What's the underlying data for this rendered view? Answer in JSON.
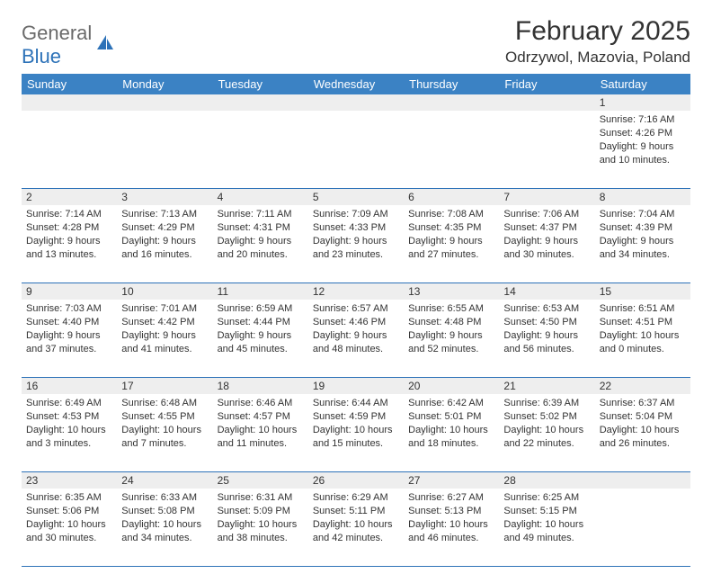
{
  "logo": {
    "part1": "General",
    "part2": "Blue"
  },
  "title": "February 2025",
  "location": "Odrzywol, Mazovia, Poland",
  "weekday_bar_color": "#3b82c4",
  "divider_color": "#2d72b8",
  "daynum_bg": "#eeeeee",
  "weekdays": [
    "Sunday",
    "Monday",
    "Tuesday",
    "Wednesday",
    "Thursday",
    "Friday",
    "Saturday"
  ],
  "weeks": [
    [
      null,
      null,
      null,
      null,
      null,
      null,
      {
        "n": "1",
        "sr": "Sunrise: 7:16 AM",
        "ss": "Sunset: 4:26 PM",
        "d1": "Daylight: 9 hours",
        "d2": "and 10 minutes."
      }
    ],
    [
      {
        "n": "2",
        "sr": "Sunrise: 7:14 AM",
        "ss": "Sunset: 4:28 PM",
        "d1": "Daylight: 9 hours",
        "d2": "and 13 minutes."
      },
      {
        "n": "3",
        "sr": "Sunrise: 7:13 AM",
        "ss": "Sunset: 4:29 PM",
        "d1": "Daylight: 9 hours",
        "d2": "and 16 minutes."
      },
      {
        "n": "4",
        "sr": "Sunrise: 7:11 AM",
        "ss": "Sunset: 4:31 PM",
        "d1": "Daylight: 9 hours",
        "d2": "and 20 minutes."
      },
      {
        "n": "5",
        "sr": "Sunrise: 7:09 AM",
        "ss": "Sunset: 4:33 PM",
        "d1": "Daylight: 9 hours",
        "d2": "and 23 minutes."
      },
      {
        "n": "6",
        "sr": "Sunrise: 7:08 AM",
        "ss": "Sunset: 4:35 PM",
        "d1": "Daylight: 9 hours",
        "d2": "and 27 minutes."
      },
      {
        "n": "7",
        "sr": "Sunrise: 7:06 AM",
        "ss": "Sunset: 4:37 PM",
        "d1": "Daylight: 9 hours",
        "d2": "and 30 minutes."
      },
      {
        "n": "8",
        "sr": "Sunrise: 7:04 AM",
        "ss": "Sunset: 4:39 PM",
        "d1": "Daylight: 9 hours",
        "d2": "and 34 minutes."
      }
    ],
    [
      {
        "n": "9",
        "sr": "Sunrise: 7:03 AM",
        "ss": "Sunset: 4:40 PM",
        "d1": "Daylight: 9 hours",
        "d2": "and 37 minutes."
      },
      {
        "n": "10",
        "sr": "Sunrise: 7:01 AM",
        "ss": "Sunset: 4:42 PM",
        "d1": "Daylight: 9 hours",
        "d2": "and 41 minutes."
      },
      {
        "n": "11",
        "sr": "Sunrise: 6:59 AM",
        "ss": "Sunset: 4:44 PM",
        "d1": "Daylight: 9 hours",
        "d2": "and 45 minutes."
      },
      {
        "n": "12",
        "sr": "Sunrise: 6:57 AM",
        "ss": "Sunset: 4:46 PM",
        "d1": "Daylight: 9 hours",
        "d2": "and 48 minutes."
      },
      {
        "n": "13",
        "sr": "Sunrise: 6:55 AM",
        "ss": "Sunset: 4:48 PM",
        "d1": "Daylight: 9 hours",
        "d2": "and 52 minutes."
      },
      {
        "n": "14",
        "sr": "Sunrise: 6:53 AM",
        "ss": "Sunset: 4:50 PM",
        "d1": "Daylight: 9 hours",
        "d2": "and 56 minutes."
      },
      {
        "n": "15",
        "sr": "Sunrise: 6:51 AM",
        "ss": "Sunset: 4:51 PM",
        "d1": "Daylight: 10 hours",
        "d2": "and 0 minutes."
      }
    ],
    [
      {
        "n": "16",
        "sr": "Sunrise: 6:49 AM",
        "ss": "Sunset: 4:53 PM",
        "d1": "Daylight: 10 hours",
        "d2": "and 3 minutes."
      },
      {
        "n": "17",
        "sr": "Sunrise: 6:48 AM",
        "ss": "Sunset: 4:55 PM",
        "d1": "Daylight: 10 hours",
        "d2": "and 7 minutes."
      },
      {
        "n": "18",
        "sr": "Sunrise: 6:46 AM",
        "ss": "Sunset: 4:57 PM",
        "d1": "Daylight: 10 hours",
        "d2": "and 11 minutes."
      },
      {
        "n": "19",
        "sr": "Sunrise: 6:44 AM",
        "ss": "Sunset: 4:59 PM",
        "d1": "Daylight: 10 hours",
        "d2": "and 15 minutes."
      },
      {
        "n": "20",
        "sr": "Sunrise: 6:42 AM",
        "ss": "Sunset: 5:01 PM",
        "d1": "Daylight: 10 hours",
        "d2": "and 18 minutes."
      },
      {
        "n": "21",
        "sr": "Sunrise: 6:39 AM",
        "ss": "Sunset: 5:02 PM",
        "d1": "Daylight: 10 hours",
        "d2": "and 22 minutes."
      },
      {
        "n": "22",
        "sr": "Sunrise: 6:37 AM",
        "ss": "Sunset: 5:04 PM",
        "d1": "Daylight: 10 hours",
        "d2": "and 26 minutes."
      }
    ],
    [
      {
        "n": "23",
        "sr": "Sunrise: 6:35 AM",
        "ss": "Sunset: 5:06 PM",
        "d1": "Daylight: 10 hours",
        "d2": "and 30 minutes."
      },
      {
        "n": "24",
        "sr": "Sunrise: 6:33 AM",
        "ss": "Sunset: 5:08 PM",
        "d1": "Daylight: 10 hours",
        "d2": "and 34 minutes."
      },
      {
        "n": "25",
        "sr": "Sunrise: 6:31 AM",
        "ss": "Sunset: 5:09 PM",
        "d1": "Daylight: 10 hours",
        "d2": "and 38 minutes."
      },
      {
        "n": "26",
        "sr": "Sunrise: 6:29 AM",
        "ss": "Sunset: 5:11 PM",
        "d1": "Daylight: 10 hours",
        "d2": "and 42 minutes."
      },
      {
        "n": "27",
        "sr": "Sunrise: 6:27 AM",
        "ss": "Sunset: 5:13 PM",
        "d1": "Daylight: 10 hours",
        "d2": "and 46 minutes."
      },
      {
        "n": "28",
        "sr": "Sunrise: 6:25 AM",
        "ss": "Sunset: 5:15 PM",
        "d1": "Daylight: 10 hours",
        "d2": "and 49 minutes."
      },
      null
    ]
  ]
}
